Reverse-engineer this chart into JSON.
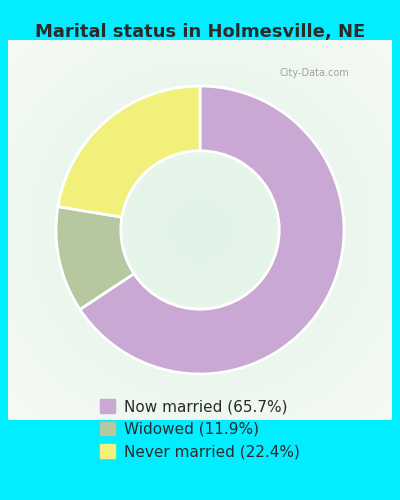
{
  "title": "Marital status in Holmesville, NE",
  "slices": [
    65.7,
    11.9,
    22.4
  ],
  "labels": [
    "Now married (65.7%)",
    "Widowed (11.9%)",
    "Never married (22.4%)"
  ],
  "colors": [
    "#c9a8d4",
    "#b5c8a0",
    "#f0f07a"
  ],
  "background_color": "#00eeff",
  "donut_width": 0.45,
  "title_fontsize": 13,
  "legend_fontsize": 11,
  "start_angle": 90,
  "watermark": "City-Data.com"
}
